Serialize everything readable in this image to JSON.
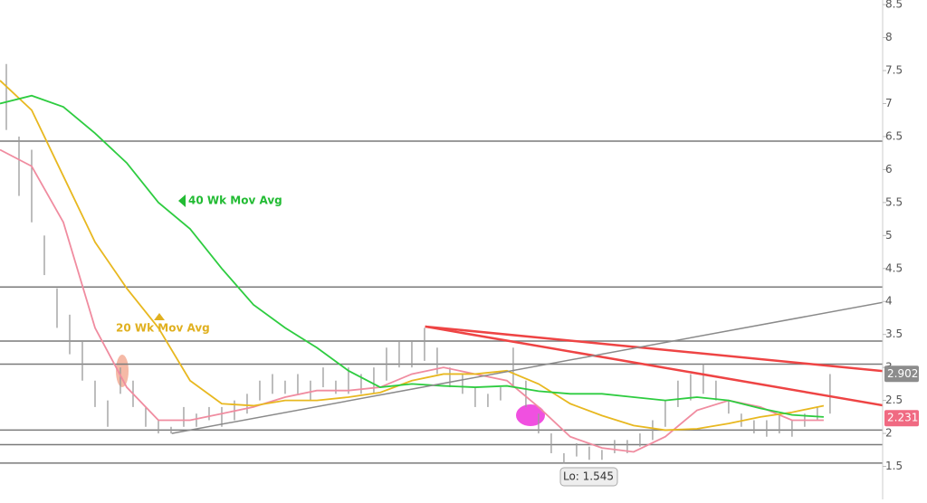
{
  "chart_data": {
    "type": "line",
    "xlim": [
      0,
      139.3
    ],
    "ylim": [
      1.0,
      8.57
    ],
    "yticks": [
      1.5,
      2,
      2.5,
      3,
      3.5,
      4,
      4.5,
      5,
      5.5,
      6,
      6.5,
      7,
      7.5,
      8,
      8.5
    ],
    "bars": {
      "color": "#9a9a9a",
      "x": [
        1,
        3,
        5,
        7,
        9,
        11,
        13,
        15,
        17,
        19,
        21,
        23,
        25,
        27,
        29,
        31,
        33,
        35,
        37,
        39,
        41,
        43,
        45,
        47,
        49,
        51,
        53,
        55,
        57,
        59,
        61,
        63,
        65,
        67,
        69,
        71,
        73,
        75,
        77,
        79,
        81,
        83,
        85,
        87,
        89,
        91,
        93,
        95,
        97,
        99,
        101,
        103,
        105,
        107,
        109,
        111,
        113,
        115,
        117,
        119,
        121,
        123,
        125,
        127,
        129,
        131
      ],
      "high": [
        7.6,
        6.5,
        6.3,
        5.0,
        4.2,
        3.8,
        3.4,
        2.8,
        2.5,
        3.0,
        2.8,
        2.4,
        2.2,
        2.1,
        2.4,
        2.3,
        2.4,
        2.4,
        2.5,
        2.6,
        2.8,
        2.9,
        2.8,
        2.9,
        2.8,
        3.0,
        2.8,
        3.0,
        2.9,
        3.0,
        3.3,
        3.4,
        3.4,
        3.6,
        3.3,
        3.0,
        2.9,
        2.7,
        2.6,
        2.7,
        3.3,
        2.8,
        2.3,
        2.0,
        1.7,
        1.85,
        1.8,
        1.75,
        1.9,
        1.9,
        2.0,
        2.2,
        2.5,
        2.8,
        2.9,
        3.05,
        2.8,
        2.5,
        2.3,
        2.2,
        2.2,
        2.3,
        2.2,
        2.3,
        2.4,
        2.9
      ],
      "low": [
        6.6,
        5.6,
        5.2,
        4.4,
        3.6,
        3.2,
        2.8,
        2.4,
        2.1,
        2.6,
        2.4,
        2.1,
        2.0,
        2.0,
        2.1,
        2.1,
        2.2,
        2.1,
        2.2,
        2.3,
        2.5,
        2.6,
        2.6,
        2.6,
        2.5,
        2.7,
        2.6,
        2.6,
        2.6,
        2.6,
        2.8,
        3.0,
        3.0,
        3.1,
        2.9,
        2.7,
        2.6,
        2.4,
        2.4,
        2.5,
        2.7,
        2.4,
        2.0,
        1.7,
        1.545,
        1.65,
        1.6,
        1.6,
        1.7,
        1.7,
        1.8,
        1.9,
        2.1,
        2.4,
        2.5,
        2.6,
        2.5,
        2.3,
        2.1,
        2.0,
        1.95,
        2.0,
        1.95,
        2.1,
        2.2,
        2.3
      ]
    },
    "x": [
      0,
      5,
      10,
      15,
      20,
      25,
      30,
      35,
      40,
      45,
      50,
      55,
      60,
      65,
      70,
      75,
      80,
      85,
      90,
      95,
      100,
      105,
      110,
      115,
      120,
      125,
      130
    ],
    "series": [
      {
        "color": "#f08ca0",
        "values": [
          6.3,
          6.05,
          5.2,
          3.6,
          2.7,
          2.2,
          2.2,
          2.3,
          2.4,
          2.55,
          2.65,
          2.65,
          2.7,
          2.9,
          3.0,
          2.9,
          2.8,
          2.4,
          1.95,
          1.78,
          1.72,
          1.95,
          2.35,
          2.5,
          2.4,
          2.2,
          2.2
        ]
      },
      {
        "color": "#e8b820",
        "values": [
          7.35,
          6.9,
          5.9,
          4.9,
          4.2,
          3.6,
          2.8,
          2.45,
          2.42,
          2.5,
          2.5,
          2.55,
          2.62,
          2.8,
          2.9,
          2.9,
          2.95,
          2.75,
          2.45,
          2.27,
          2.12,
          2.05,
          2.07,
          2.15,
          2.25,
          2.32,
          2.42
        ]
      },
      {
        "color": "#2ecc40",
        "values": [
          7.0,
          7.12,
          6.95,
          6.55,
          6.1,
          5.5,
          5.1,
          4.5,
          3.95,
          3.6,
          3.3,
          2.95,
          2.7,
          2.75,
          2.72,
          2.7,
          2.72,
          2.64,
          2.6,
          2.6,
          2.55,
          2.5,
          2.55,
          2.5,
          2.38,
          2.28,
          2.25
        ]
      }
    ],
    "hlines": [
      6.43,
      4.22,
      3.4,
      3.05,
      2.05,
      1.83,
      1.55
    ],
    "hline_color": "#7a7a7a",
    "trendlines": [
      {
        "color": "#ee4444",
        "points": [
          [
            67.1,
            3.62
          ],
          [
            146.3,
            2.88
          ]
        ]
      },
      {
        "color": "#ee4444",
        "points": [
          [
            67.1,
            3.62
          ],
          [
            146.3,
            2.31
          ]
        ]
      },
      {
        "color": "#8a8a8a",
        "points": [
          [
            27.1,
            2.0
          ],
          [
            146.3,
            4.11
          ]
        ]
      }
    ],
    "price_labels": [
      {
        "value": 2.902,
        "color": "#8c8c8c"
      },
      {
        "value": 2.231,
        "color": "#f06a82"
      }
    ],
    "annotations": [
      "40 Wk Mov Avg",
      "20 Wk Mov Avg",
      "Lo: 1.545"
    ]
  }
}
